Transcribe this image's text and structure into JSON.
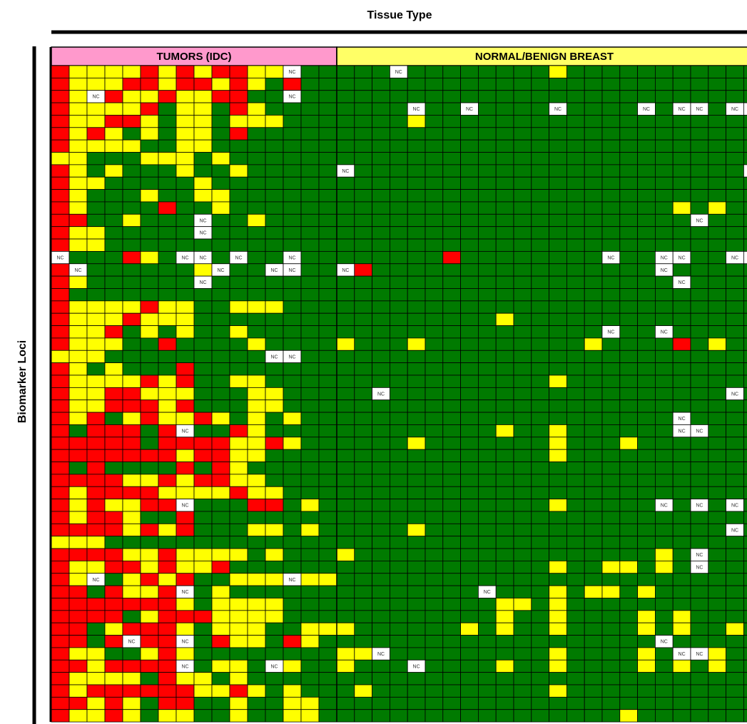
{
  "title": "Tissue Type",
  "y_label": "Biomarker Loci",
  "groups": {
    "tumor": "TUMORS (IDC)",
    "normal": "NORMAL/BENIGN BREAST"
  },
  "nc_label": "NC",
  "colors": {
    "R": "#ff0000",
    "Y": "#ffff00",
    "G": "#007a00",
    "N": "#ffffff",
    "tumor_header": "#ff99cc",
    "normal_header": "#ffff66"
  },
  "tumor_rows": [
    "RYYYYRYRYRRYYNGG",
    "RYYYRRYRRYRYGRGG",
    "RYNRYYRYYRRGGNGG",
    "RYYYYRGYYGRYGGGG",
    "RYYRRYGYYGYYYGGG",
    "RYRYGYGYYGRGGGGG",
    "RYYYYGGYYGGGGGGG",
    "YYGGGYYYGYGGGGGG",
    "RYGYGGGYGGYGGGGG",
    "RYYGGGGGYGGGGGGG",
    "RYGGGYGGYYGGGGGG",
    "RYGGGGRGGYGGGGGG",
    "RRGGYGGGNGGYGGGG",
    "RYYGGGGGNGGGGGGG",
    "RYYGGGGGGGGGGGGG",
    "NGGGRYGNNGNGGNGG",
    "RNGGGGGGYNGGNNGG",
    "RYGGGGGGNGGGGGGG",
    "RGGGGGGGGGGGGGGG",
    "RYYYYRYYGGYYYGGG",
    "RYYYRYYYGGGGGGGG",
    "RYYRGYGYGGYGGGGG",
    "RYYYGGRGGGGYGGGG",
    "YYYGGGGGGGGGNNGG",
    "RYGYGGGRGGGGGGGG",
    "RYYYYRYRGGYYGGGG",
    "RYYRRYYYGGGYYGGG",
    "RYYRRRYRGGGYYGGG",
    "RYRGYRYYRYGYGYGG",
    "RGRRRGRNGGRYGGGG",
    "RRRRRGRRRRYYRYGG",
    "RRRRRRRYRRYYGGGG",
    "RGRGGGGRGRYGGGGG",
    "RRRRYYRYRRYYGGGG",
    "RYRRRRYYYYRYYGGG",
    "RYRYYRRNGGGRRGYG",
    "RYRRYGGRGGGGGGGG",
    "RRRRYRYRGGGYYGYG",
    "YYYGGGGGGGGGGGGG",
    "RRRRYYRYYYYGYGGG",
    "RYYRRYRYYRGGGGGG",
    "RYNGYRYRGGYYYNYY",
    "RRGRYYRNGYGGGGGG",
    "RRRRRRRYGYYYYGGG",
    "RRRRGYRRRYYYYGGG",
    "RRGYRRRYGYYYGGYY",
    "RRGRNRRNGRYYGRYG",
    "RYYGGYRYGGGGGGGG",
    "RRYRRRRNGYYGNYGG",
    "RYYYYGRYYGYGGGGG",
    "RYRRRRRRYYRYGYGG",
    "RRYRYGRRGGYGGYYG",
    "RYYRYGYYGGYGGYYG"
  ],
  "normal_rows": [
    "GGGNGGGGGGGGYGGGGGGGGGGG",
    "GGGGGGGGGGGGGGGGGGGGGGGG",
    "GGGGGGGGGGGGGGGGGGGGGGGG",
    "GGGGNGGNGGGGNGGGGNGNNGNN",
    "GGGGYGGGGGGGGGGGGGGGGGGG",
    "GGGGGGGGGGGGGGGGGGGGGGGG",
    "GGGGGGGGGGGGGGGGGGGGGGGG",
    "GGGGGGGGGGGGGGGGGGGGGGGG",
    "NGGGGGGGGGGGGGGGGGGGGGGN",
    "GGGGGGGGGGGGGGGGGGGGGGGG",
    "GGGGGGGGGGGGGGGGGGGGGGGG",
    "GGGGGGGGGGGGGGGGGGGYGYGG",
    "GGGGGGGGGGGGGGGGGGGGNGGG",
    "GGGGGGGGGGGGGGGGGGGGGGGG",
    "GGGGGGGGGGGGGGGGGGGGGGGG",
    "GGGGGGRGGGGGGGGNGGNNGGNN",
    "NRGGGGGGGGGGGGGGGGNGGGGG",
    "GGGGGGGGGGGGGGGGGGGNGGGG",
    "GGGGGGGGGGGGGGGGGGGGGGGG",
    "GGGGGGGGGGGGGGGGGGGGGGGG",
    "GGGGGGGGGYGGGGGGGGGGGGGG",
    "GGGGGGGGGGGGGGGNGGNGGGGG",
    "YGGGYGGGGGGGGGYGGGGRGYGG",
    "GGGGGGGGGGGGGGGGGGGGGGGG",
    "GGGGGGGGGGGGGGGGGGGGGGGG",
    "GGGGGGGGGGGGYGGGGGGGGGGG",
    "GGNGGGGGGGGGGGGGGGGGGGNG",
    "GGGGGGGGGGGGGGGGGGGGGGGG",
    "GGGGGGGGGGGGGGGGGGGNGGGG",
    "GGGGGGGGGYGGYGGGGGGNNGGG",
    "GGGGYGGGGGGGYGGGYGGGGGGG",
    "GGGGGGGGGGGGYGGGGGGGGGGG",
    "GGGGGGGGGGGGGGGGGGGGGGGG",
    "GGGGGGGGGGGGGGGGGGGGGGGG",
    "GGGGGGGGGGGGGGGGGGGGGGGG",
    "GGGGGGGGGGGGYGGGGGNGNGNG",
    "GGGGGGGGGGGGGGGGGGGGGGGG",
    "GGGGYGGGGGGGGGGGGGGGGGNG",
    "GGGGGGGGGGGGGGGGGGGGGGGG",
    "YGGGGGGGGGGGGGGGGGYGNGGG",
    "GGGGGGGGGGGGYGGYYGYGNGGG",
    "GGGGGGGGGGGGGGGGGGGGGGGG",
    "GGGGGGGGNGGGYGYYGYGGGGGG",
    "GGGGGGGGGYYGYGGGGGGGGGGG",
    "GGGGGGGGGYGGYGGGGYGYGGGG",
    "YGGGGGGYGYGGYGGGGYGYGGYG",
    "GGGGGGGGGGGGGGGGGGNGGGGG",
    "YYNGGGGGGGGGYGGGGYGNNYGG",
    "YGGGNGGGGYGGYGGGGYGYGYGG",
    "GGGGGGGGGGGGGGGGGGGGGGGG",
    "GYGGGGGGGGGGYGGGGGGGGGGG",
    "GGGGGGGGGGGGGGGGGGGGGGGG",
    "GGGGGGGGGGGGGGGGYGGGGGGG"
  ]
}
